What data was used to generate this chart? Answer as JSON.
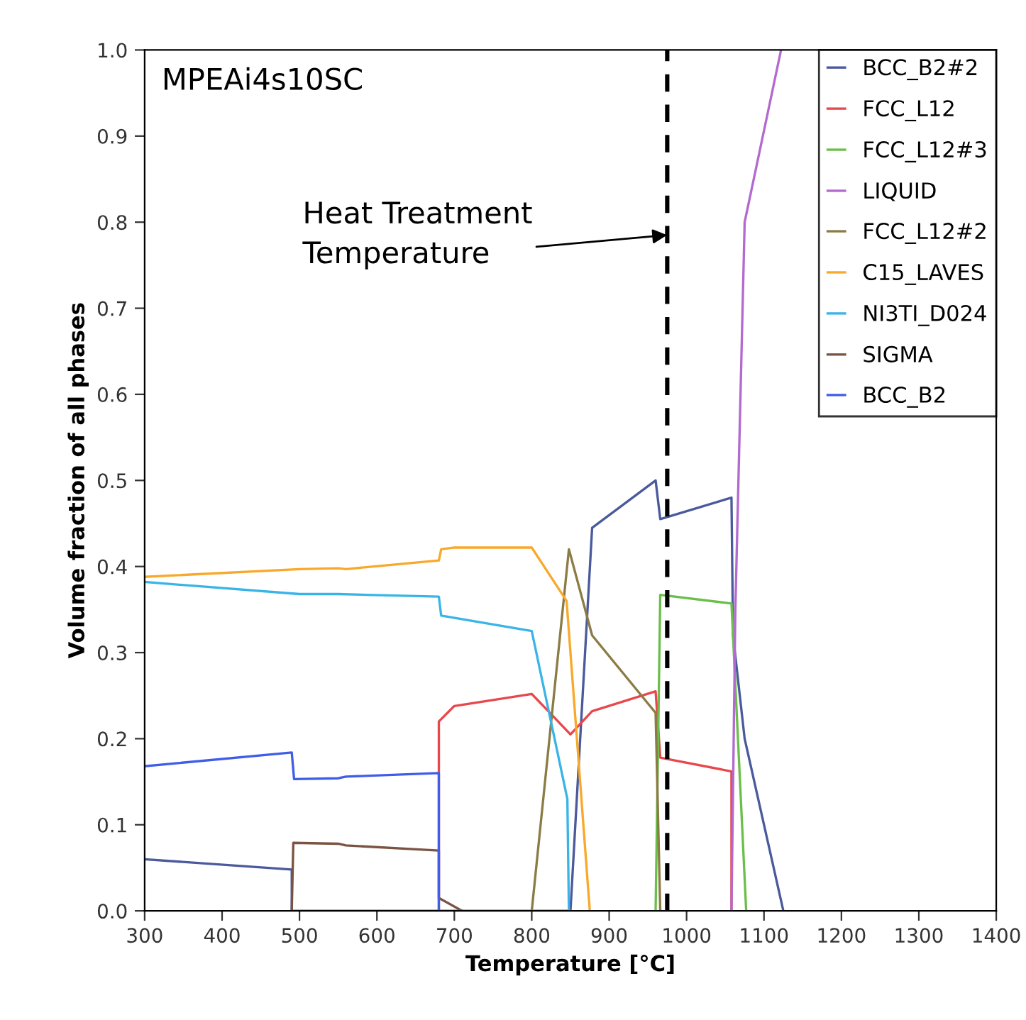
{
  "chart_data": {
    "type": "line",
    "xlabel": "Temperature [°C]",
    "ylabel": "Volume fraction of all phases",
    "xlim": [
      300,
      1400
    ],
    "ylim": [
      0,
      1.0
    ],
    "xticks": [
      300,
      400,
      500,
      600,
      700,
      800,
      900,
      1000,
      1100,
      1200,
      1300,
      1400
    ],
    "yticks": [
      {
        "value": 0,
        "label": "0.0"
      },
      0.1,
      0.2,
      0.3,
      0.4,
      0.5,
      0.6,
      0.7,
      0.8,
      0.9,
      {
        "value": 1,
        "label": "1.0"
      }
    ],
    "grid": false,
    "legend": "top right",
    "marker": "none",
    "line_style": "solid",
    "series": [
      {
        "name": "BCC_B2#2",
        "color": "#4a5a9c",
        "x": [
          300,
          490,
          490,
          850,
          878,
          960,
          966,
          1058,
          1060,
          1075,
          1125
        ],
        "values": [
          0.06,
          0.048,
          0,
          0,
          0.445,
          0.5,
          0.455,
          0.48,
          0.32,
          0.2,
          0
        ]
      },
      {
        "name": "FCC_L12",
        "color": "#e8474c",
        "x": [
          680,
          680,
          700,
          800,
          850,
          878,
          960,
          966,
          1058,
          1058
        ],
        "values": [
          0,
          0.22,
          0.238,
          0.252,
          0.205,
          0.232,
          0.255,
          0.178,
          0.162,
          0
        ]
      },
      {
        "name": "FCC_L12#3",
        "color": "#6abf4b",
        "x": [
          960,
          966,
          1058,
          1077
        ],
        "values": [
          0,
          0.367,
          0.357,
          0
        ]
      },
      {
        "name": "LIQUID",
        "color": "#b36ad0",
        "x": [
          1058,
          1063,
          1075,
          1122
        ],
        "values": [
          0,
          0.35,
          0.8,
          1.0
        ]
      },
      {
        "name": "FCC_L12#2",
        "color": "#8b7b45",
        "x": [
          800,
          848,
          878,
          960,
          966
        ],
        "values": [
          0,
          0.42,
          0.32,
          0.23,
          0
        ]
      },
      {
        "name": "C15_LAVES",
        "color": "#f8a92a",
        "x": [
          300,
          500,
          550,
          560,
          680,
          683,
          700,
          800,
          845,
          875
        ],
        "values": [
          0.388,
          0.397,
          0.398,
          0.397,
          0.407,
          0.42,
          0.422,
          0.422,
          0.36,
          0
        ]
      },
      {
        "name": "NI3TI_D024",
        "color": "#3ab4e8",
        "x": [
          300,
          500,
          550,
          680,
          683,
          800,
          846,
          848
        ],
        "values": [
          0.382,
          0.368,
          0.368,
          0.365,
          0.343,
          0.325,
          0.13,
          0
        ]
      },
      {
        "name": "SIGMA",
        "color": "#7a5443",
        "x": [
          490,
          492,
          550,
          560,
          680,
          680,
          710
        ],
        "values": [
          0,
          0.079,
          0.078,
          0.076,
          0.07,
          0.015,
          0
        ]
      },
      {
        "name": "BCC_B2",
        "color": "#3f5ee8",
        "x": [
          300,
          490,
          493,
          550,
          560,
          680,
          680
        ],
        "values": [
          0.168,
          0.184,
          0.153,
          0.154,
          0.156,
          0.16,
          0
        ]
      }
    ],
    "ref_lines": [
      {
        "axis": "x",
        "value": 975,
        "color": "#000000",
        "line_style": "dashed"
      }
    ],
    "annotations": [
      "MPEAi4s10SC",
      {
        "text": "Heat Treatment\nTemperature",
        "x": 975,
        "y": 0.785
      }
    ]
  }
}
